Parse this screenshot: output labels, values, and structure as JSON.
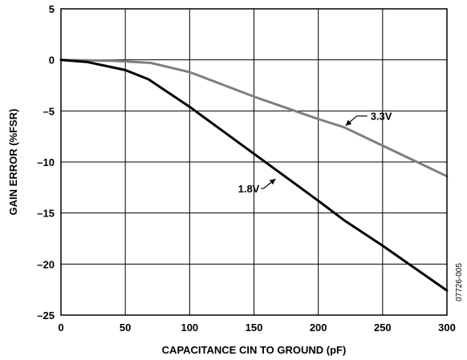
{
  "chart_data": {
    "type": "line",
    "xlabel": "CAPACITANCE CIN TO GROUND (pF)",
    "ylabel": "GAIN ERROR (%FSR)",
    "xlim": [
      0,
      300
    ],
    "ylim": [
      -25,
      5
    ],
    "x_ticks": [
      0,
      50,
      100,
      150,
      200,
      250,
      300
    ],
    "y_ticks": [
      5,
      0,
      -5,
      -10,
      -15,
      -20,
      -25
    ],
    "grid": true,
    "figure_id": "07726-005",
    "series": [
      {
        "name": "3.3V",
        "color": "#7f7f7f",
        "x": [
          0,
          20,
          40,
          50,
          70,
          100,
          150,
          200,
          220,
          250,
          300
        ],
        "y": [
          0,
          -0.05,
          -0.1,
          -0.15,
          -0.3,
          -1.2,
          -3.6,
          -5.8,
          -6.6,
          -8.4,
          -11.4
        ]
      },
      {
        "name": "1.8V",
        "color": "#000000",
        "x": [
          0,
          20,
          50,
          68,
          100,
          150,
          200,
          220,
          250,
          300
        ],
        "y": [
          0,
          -0.2,
          -1.0,
          -1.9,
          -4.6,
          -9.2,
          -13.8,
          -15.7,
          -18.2,
          -22.6
        ]
      }
    ],
    "annotations": [
      {
        "series": "3.3V",
        "text": "3.3V",
        "x": 220,
        "y": -6.6
      },
      {
        "series": "1.8V",
        "text": "1.8V",
        "x": 168,
        "y": -11.5
      }
    ]
  }
}
